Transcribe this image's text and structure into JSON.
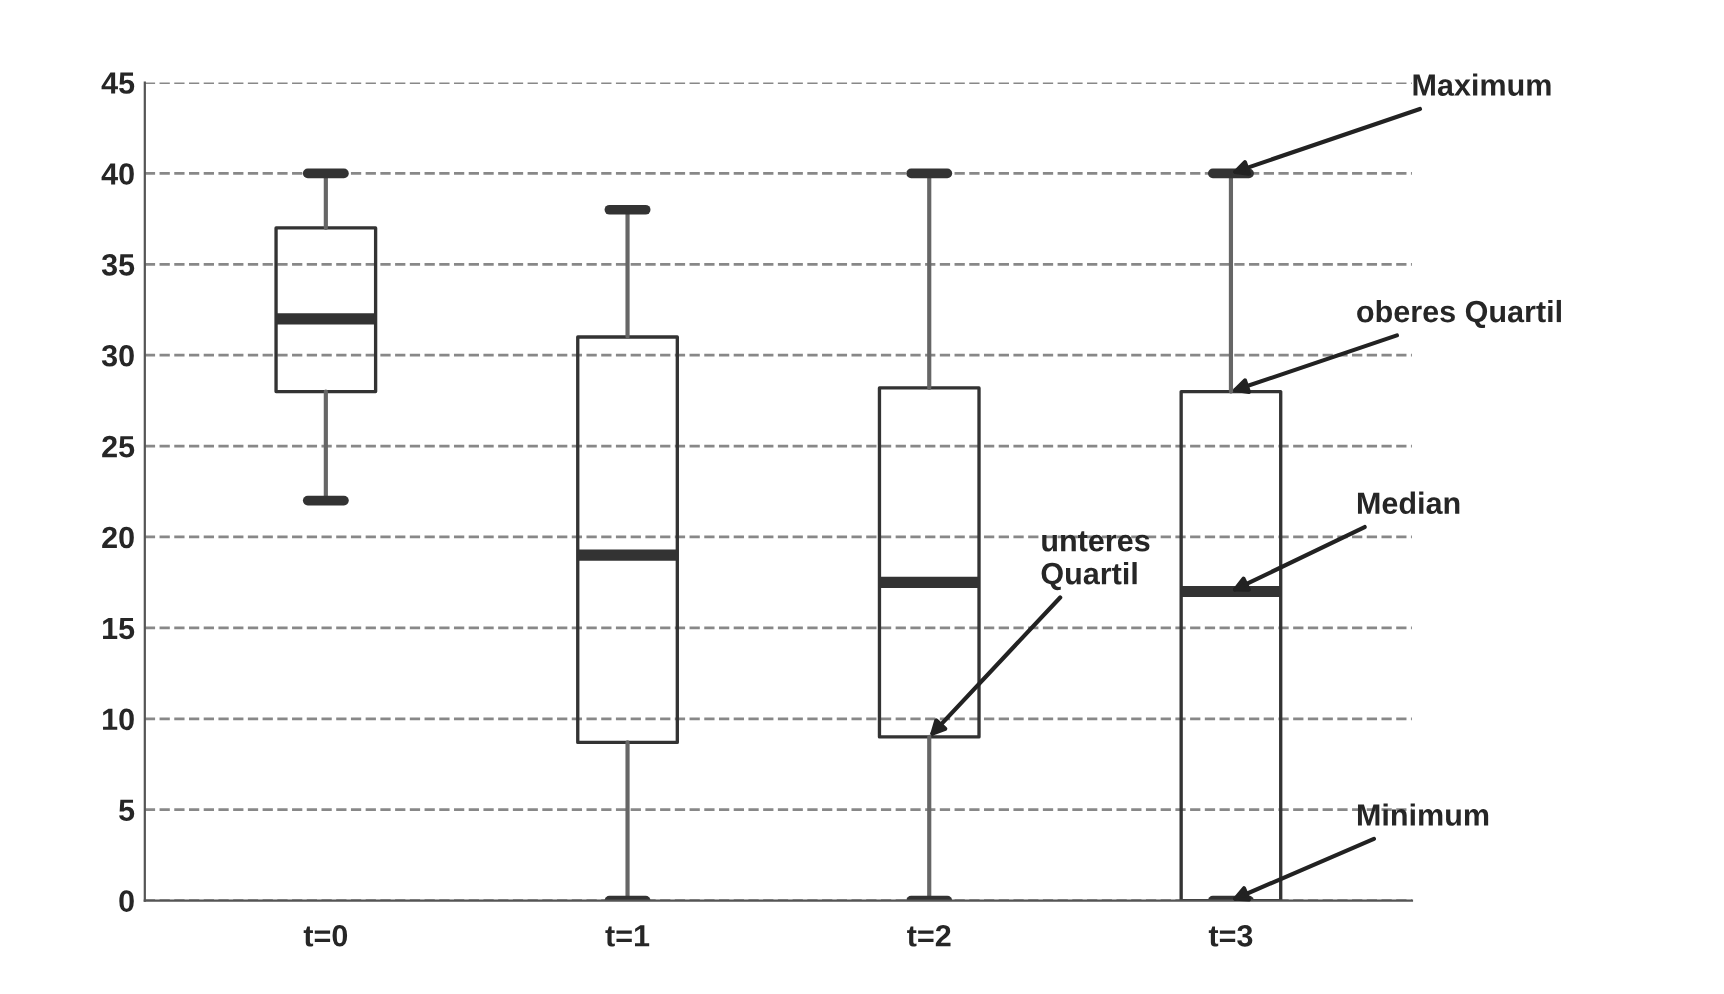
{
  "chart_data": {
    "type": "box",
    "categories": [
      "t=0",
      "t=1",
      "t=2",
      "t=3"
    ],
    "boxes": [
      {
        "low": 22,
        "q1": 28,
        "median": 32,
        "q3": 37,
        "high": 40
      },
      {
        "low": 0,
        "q1": 8.7,
        "median": 19,
        "q3": 31,
        "high": 38
      },
      {
        "low": 0,
        "q1": 9,
        "median": 17.5,
        "q3": 28.2,
        "high": 40
      },
      {
        "low": 0,
        "q1": 0,
        "median": 17,
        "q3": 28,
        "high": 40
      }
    ],
    "ylim": [
      0,
      45
    ],
    "yticks": [
      0,
      5,
      10,
      15,
      20,
      25,
      30,
      35,
      40,
      45
    ],
    "grid": "y",
    "line_style": "dashed",
    "annotations": [
      {
        "text": "Maximum",
        "x": "t=3",
        "y": 40
      },
      {
        "text": "oberes Quartil",
        "x": "t=3",
        "y": 28
      },
      {
        "text": "Median",
        "x": "t=3",
        "y": 17
      },
      {
        "text": "unteres\nQuartil",
        "x": "t=2",
        "y": 9
      },
      {
        "text": "Minimum",
        "x": "t=3",
        "y": 0
      }
    ]
  }
}
